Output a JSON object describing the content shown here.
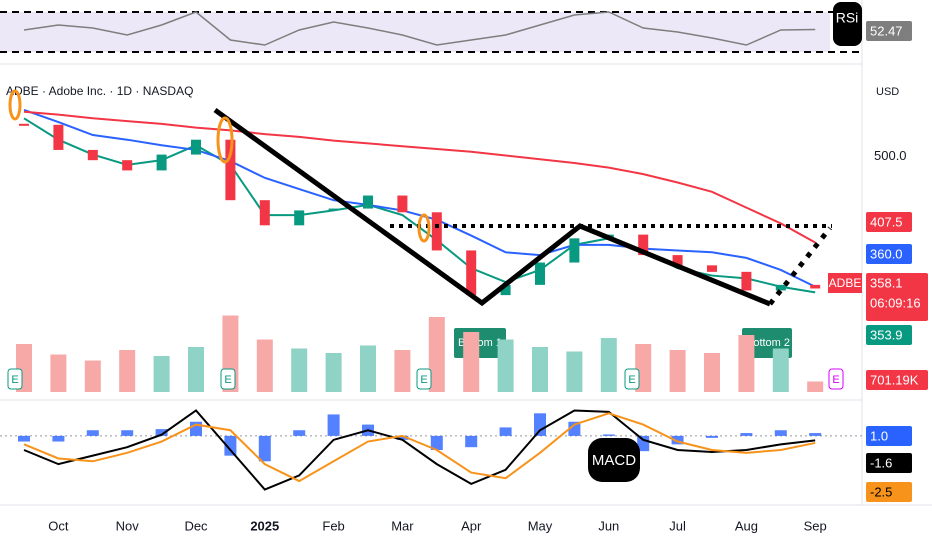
{
  "header": {
    "symbol_line": "ADBE · Adobe Inc. · 1D · NASDAQ",
    "currency": "USD"
  },
  "chart_data": [
    {
      "type": "line",
      "ylim": [
        20,
        82
      ],
      "levels": [
        30,
        70
      ],
      "band_color": "#ede8f7",
      "series": [
        {
          "name": "RSi",
          "color": "#7e7e7e",
          "values": [
            52,
            57,
            54,
            47,
            57,
            70,
            42,
            37,
            52,
            60,
            54,
            47,
            37,
            42,
            47,
            57,
            67,
            70,
            54,
            50,
            44,
            37,
            52,
            52.47
          ]
        }
      ]
    },
    {
      "type": "candlestick",
      "ylim": [
        335,
        580
      ],
      "yticks": [
        {
          "value": 500,
          "label": "500.0"
        }
      ],
      "countdown": "06:09:16",
      "annotations": [
        "Bottom 1",
        "Bottom 2"
      ],
      "series": [
        {
          "name": "ADBE",
          "color_up": "#089981",
          "color_down": "#f23645",
          "values": [
            534,
            507,
            496,
            485,
            502,
            518,
            453,
            426,
            442,
            444,
            458,
            440,
            399,
            351,
            362,
            386,
            412,
            416,
            394,
            383,
            376,
            356,
            362,
            358.1
          ]
        },
        {
          "color": "#f23645",
          "values": [
            548,
            545,
            541,
            538,
            535,
            531,
            528,
            524,
            521,
            517,
            514,
            511,
            508,
            505,
            501,
            497,
            493,
            488,
            481,
            472,
            462,
            445,
            428,
            407.5
          ]
        },
        {
          "color": "#2962ff",
          "values": [
            550,
            537,
            523,
            518,
            512,
            507,
            495,
            477,
            465,
            453,
            448,
            442,
            432,
            415,
            397,
            394,
            405,
            405,
            401,
            399,
            397,
            391,
            378,
            360
          ],
          "value_labels": [
            null,
            null,
            null,
            null,
            null,
            null,
            null,
            null,
            null,
            null,
            null,
            null,
            null,
            null,
            null,
            null,
            null,
            null,
            null,
            null,
            null,
            null,
            null,
            "360.0"
          ]
        },
        {
          "color": "#089981",
          "values": [
            541,
            518,
            502,
            491,
            496,
            512,
            491,
            437,
            437,
            442,
            448,
            437,
            410,
            380,
            365,
            378,
            405,
            412,
            399,
            380,
            372,
            369,
            360,
            353.9
          ]
        }
      ]
    },
    {
      "type": "bar",
      "ylim": [
        0,
        6000000
      ],
      "earnings_label": "E",
      "series": [
        {
          "values": [
            3200000,
            2500000,
            2100000,
            2800000,
            2400000,
            3000000,
            5100000,
            3500000,
            2900000,
            2600000,
            3100000,
            2800000,
            5000000,
            4000000,
            3500000,
            3000000,
            2700000,
            3600000,
            3200000,
            2800000,
            2600000,
            3800000,
            2900000,
            701190
          ],
          "value_labels": [
            null,
            null,
            null,
            null,
            null,
            null,
            null,
            null,
            null,
            null,
            null,
            null,
            null,
            null,
            null,
            null,
            null,
            null,
            null,
            null,
            null,
            null,
            null,
            "701.19K"
          ]
        }
      ]
    },
    {
      "type": "macd",
      "title": "MACD",
      "ylim": [
        -22,
        12
      ],
      "categories": [
        null,
        "Oct",
        null,
        "Nov",
        null,
        "Dec",
        null,
        "2025",
        null,
        "Feb",
        null,
        "Mar",
        null,
        "Apr",
        null,
        "May",
        null,
        "Jun",
        null,
        "Jul",
        null,
        "Aug",
        null,
        "Sep"
      ],
      "series": [
        {
          "color": "#2962ff",
          "values": [
            -2,
            -2,
            2,
            2,
            2.4,
            5,
            -7,
            -9,
            2,
            7.6,
            4,
            -1.4,
            -5,
            -4,
            3,
            8,
            5,
            0.5,
            -5.4,
            -3,
            -0.7,
            1,
            2,
            1.0
          ],
          "value_labels": [
            null,
            null,
            null,
            null,
            null,
            null,
            null,
            null,
            null,
            null,
            null,
            null,
            null,
            null,
            null,
            null,
            null,
            null,
            null,
            null,
            null,
            null,
            null,
            "1.0"
          ]
        },
        {
          "color": "#000000",
          "values": [
            -5,
            -10,
            -7,
            -4,
            0.4,
            9,
            -5,
            -19,
            -14,
            -1.4,
            2,
            -1.4,
            -10,
            -17,
            -12,
            2,
            9,
            8.5,
            -1.4,
            -5,
            -5.7,
            -5,
            -3,
            -1.6
          ]
        },
        {
          "color": "#f7931a",
          "values": [
            -3,
            -8,
            -9,
            -6,
            -2,
            4,
            2,
            -10,
            -16,
            -9,
            -2,
            0,
            -5,
            -13,
            -15,
            -6,
            4,
            8,
            4,
            -2,
            -5,
            -6,
            -5,
            -2.5
          ]
        }
      ]
    }
  ]
}
